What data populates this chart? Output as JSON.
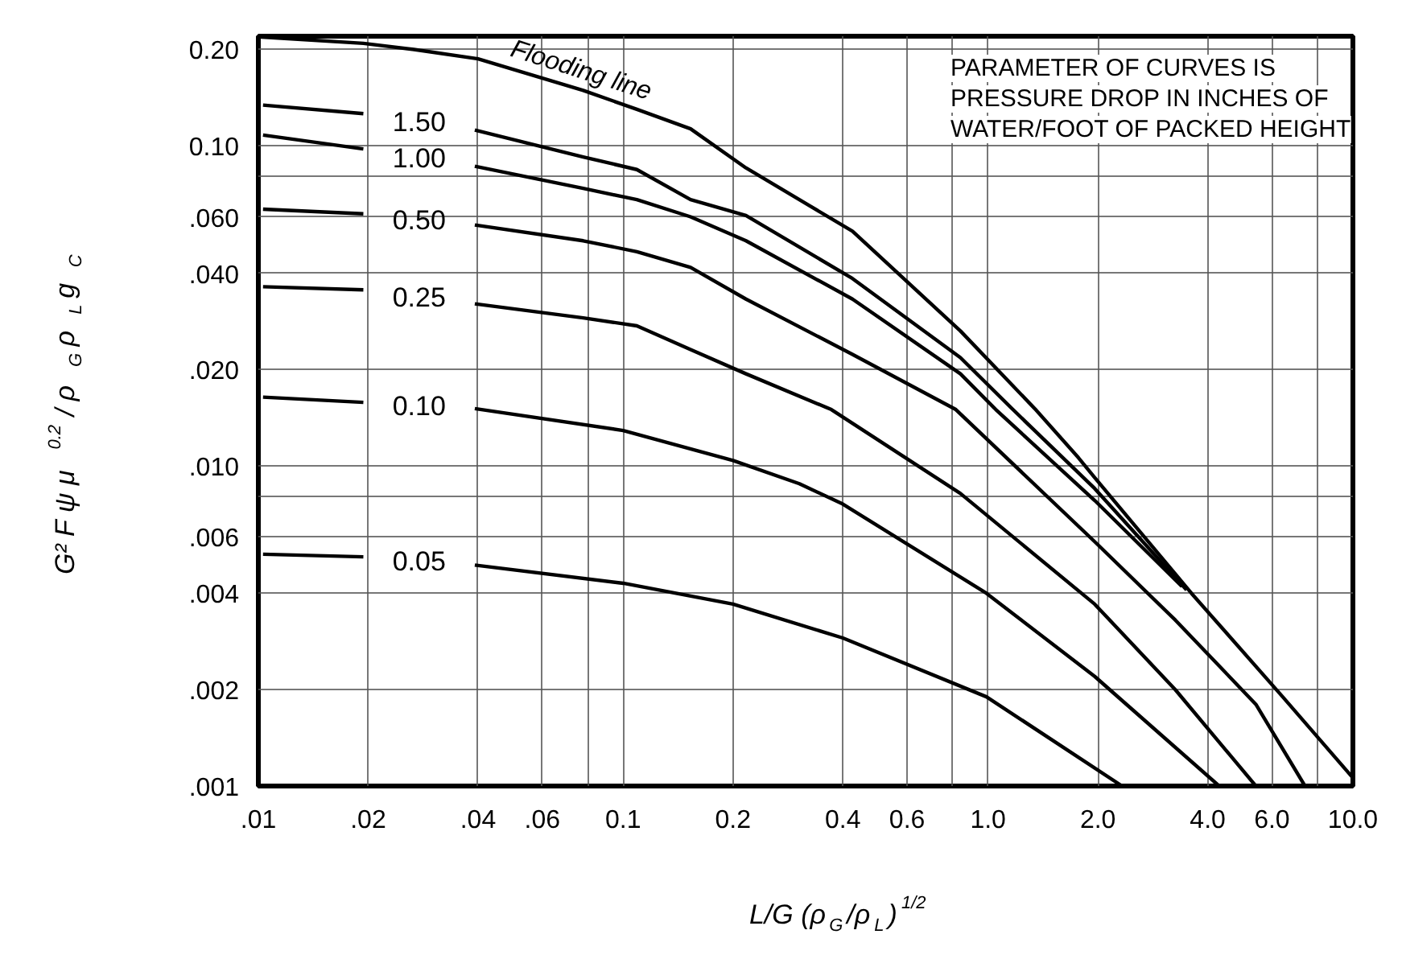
{
  "chart_data": {
    "type": "line",
    "xlabel": "L/G (ρ$_{G}$/ρ$_{L}$)$^{1/2}$",
    "ylabel": "G² F ψ μ$^{0.2}$ / ρ$_{G}$ ρ$_{L}$ g$_{C}$",
    "annotations": [
      "PARAMETER OF CURVES IS\nPRESSURE DROP IN INCHES OF\nWATER/FOOT OF PACKED HEIGHT"
    ],
    "log": "xy",
    "grid": true,
    "legend": false,
    "marker": "none",
    "line_style": "solid",
    "xlim": [
      0.01,
      10
    ],
    "ylim": [
      0.001,
      0.22
    ],
    "xticks": [
      {
        "value": 0.01,
        "label": ".01"
      },
      {
        "value": 0.02,
        "label": ".02"
      },
      {
        "value": 0.04,
        "label": ".04"
      },
      {
        "value": 0.06,
        "label": ".06"
      },
      {
        "value": 0.08,
        "label": null
      },
      {
        "value": 0.1,
        "label": "0.1"
      },
      {
        "value": 0.2,
        "label": "0.2"
      },
      {
        "value": 0.4,
        "label": "0.4"
      },
      {
        "value": 0.6,
        "label": "0.6"
      },
      {
        "value": 0.8,
        "label": null
      },
      {
        "value": 1,
        "label": "1.0"
      },
      {
        "value": 2,
        "label": "2.0"
      },
      {
        "value": 4,
        "label": "4.0"
      },
      {
        "value": 6,
        "label": "6.0"
      },
      {
        "value": 8,
        "label": null
      },
      {
        "value": 10,
        "label": "10.0"
      }
    ],
    "yticks": [
      {
        "value": 0.001,
        "label": ".001"
      },
      {
        "value": 0.002,
        "label": ".002"
      },
      {
        "value": 0.004,
        "label": ".004"
      },
      {
        "value": 0.006,
        "label": ".006"
      },
      {
        "value": 0.008,
        "label": null
      },
      {
        "value": 0.01,
        "label": ".010"
      },
      {
        "value": 0.02,
        "label": ".020"
      },
      {
        "value": 0.04,
        "label": ".040"
      },
      {
        "value": 0.06,
        "label": ".060"
      },
      {
        "value": 0.08,
        "label": null
      },
      {
        "value": 0.1,
        "label": "0.10"
      },
      {
        "value": 0.2,
        "label": "0.20"
      }
    ],
    "series": [
      {
        "name": "Flooding line",
        "color": "#000000",
        "x": [
          0.01,
          0.0194,
          0.0267,
          0.04,
          0.0777,
          0.109,
          0.153,
          0.217,
          0.425,
          0.84,
          1.35,
          1.77,
          1.96,
          3.61,
          6.42,
          10
        ],
        "values": [
          0.219,
          0.209,
          0.2,
          0.187,
          0.149,
          0.13,
          0.113,
          0.0853,
          0.0541,
          0.0264,
          0.015,
          0.0106,
          0.0092,
          0.004,
          0.0019,
          0.00106
        ]
      },
      {
        "name": "1.50",
        "color": "#000000",
        "x": [
          0.0103,
          0.0194,
          0.03,
          0.0392,
          0.0777,
          0.109,
          0.153,
          0.217,
          0.425,
          0.84,
          1.17,
          1.96,
          3.5
        ],
        "values": [
          0.134,
          0.126,
          null,
          0.112,
          0.0923,
          0.0843,
          0.0679,
          0.0606,
          0.0385,
          0.0218,
          0.015,
          0.0085,
          0.0041
        ]
      },
      {
        "name": "1.00",
        "color": "#000000",
        "x": [
          0.0103,
          0.0194,
          0.03,
          0.0392,
          0.0777,
          0.109,
          0.153,
          0.217,
          0.425,
          0.84,
          1.05,
          1.96,
          3.4
        ],
        "values": [
          0.108,
          0.0978,
          null,
          0.0863,
          0.0736,
          0.0679,
          0.06,
          0.0505,
          0.0332,
          0.0194,
          0.015,
          0.0078,
          0.0042
        ]
      },
      {
        "name": "0.50",
        "color": "#000000",
        "x": [
          0.0103,
          0.0194,
          0.03,
          0.0392,
          0.0777,
          0.109,
          0.153,
          0.217,
          0.425,
          0.816,
          1.96,
          3.26,
          5.42,
          7.39
        ],
        "values": [
          0.0634,
          0.0613,
          null,
          0.0566,
          0.0505,
          0.0467,
          0.0417,
          0.0332,
          0.0223,
          0.015,
          0.0058,
          0.0033,
          0.0018,
          0.001
        ]
      },
      {
        "name": "0.25",
        "color": "#000000",
        "x": [
          0.0103,
          0.0194,
          0.03,
          0.0392,
          0.0777,
          0.109,
          0.153,
          0.217,
          0.372,
          0.84,
          1.96,
          3.26,
          5.42
        ],
        "values": [
          0.0363,
          0.0355,
          null,
          0.0321,
          0.029,
          0.0274,
          0.0231,
          0.0194,
          0.015,
          0.0082,
          0.0037,
          0.002,
          0.001
        ]
      },
      {
        "name": "0.10",
        "color": "#000000",
        "x": [
          0.0103,
          0.0194,
          0.03,
          0.0392,
          0.1,
          0.2,
          0.304,
          0.4,
          0.99,
          1.96,
          4.3
        ],
        "values": [
          0.0164,
          0.0158,
          null,
          0.0151,
          0.0129,
          0.0104,
          0.0088,
          0.0076,
          0.004,
          0.0022,
          0.001
        ]
      },
      {
        "name": "0.05",
        "color": "#000000",
        "x": [
          0.0103,
          0.0194,
          0.03,
          0.0392,
          0.1,
          0.2,
          0.4,
          0.99,
          2.33
        ],
        "values": [
          0.0053,
          0.0052,
          null,
          0.0049,
          0.0043,
          0.0037,
          0.0029,
          0.0019,
          0.001
        ]
      }
    ]
  }
}
